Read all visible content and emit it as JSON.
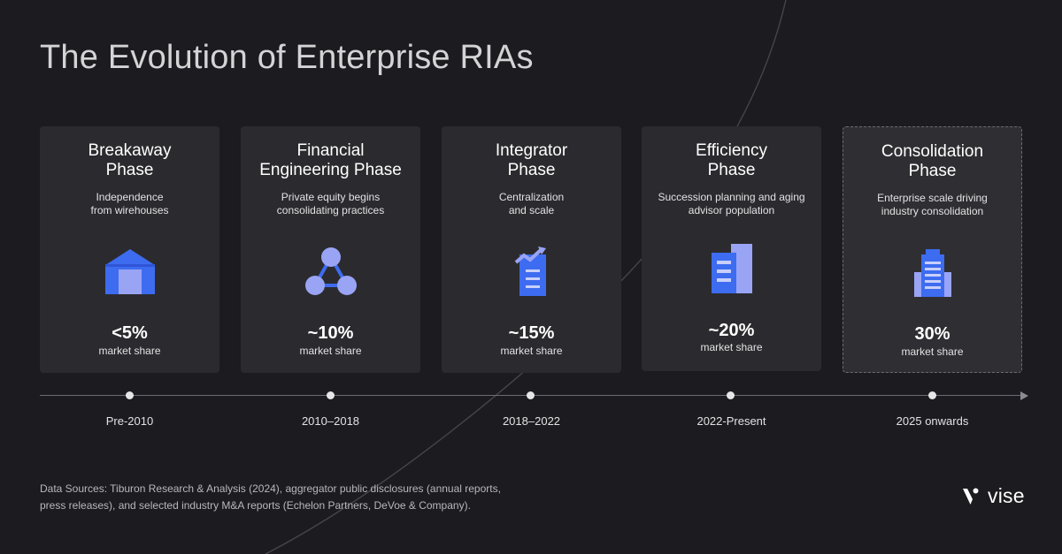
{
  "title": "The Evolution of Enterprise RIAs",
  "phases": [
    {
      "title": "Breakaway\nPhase",
      "description": "Independence\nfrom wirehouses",
      "value": "<5%",
      "unit": "market share",
      "icon": "house-icon",
      "period": "Pre-2010"
    },
    {
      "title": "Financial\nEngineering Phase",
      "description": "Private equity begins\nconsolidating practices",
      "value": "~10%",
      "unit": "market share",
      "icon": "network-icon",
      "period": "2010–2018"
    },
    {
      "title": "Integrator\nPhase",
      "description": "Centralization\nand scale",
      "value": "~15%",
      "unit": "market share",
      "icon": "growth-document-icon",
      "period": "2018–2022"
    },
    {
      "title": "Efficiency\nPhase",
      "description": "Succession planning and aging\nadvisor population",
      "value": "~20%",
      "unit": "market share",
      "icon": "buildings-icon",
      "period": "2022-Present"
    },
    {
      "title": "Consolidation\nPhase",
      "description": "Enterprise scale driving\nindustry consolidation",
      "value": "30%",
      "unit": "market share",
      "icon": "skyscraper-icon",
      "period": "2025 onwards"
    }
  ],
  "sources": "Data Sources: Tiburon Research & Analysis (2024), aggregator public disclosures (annual reports,\npress releases), and selected industry M&A reports (Echelon Partners, DeVoe & Company).",
  "brand": {
    "name": "vise"
  },
  "colors": {
    "background": "#1c1c20",
    "card": "#2b2b2f",
    "accent_blue": "#3d6cf0",
    "accent_lavender": "#9aa4f5"
  }
}
